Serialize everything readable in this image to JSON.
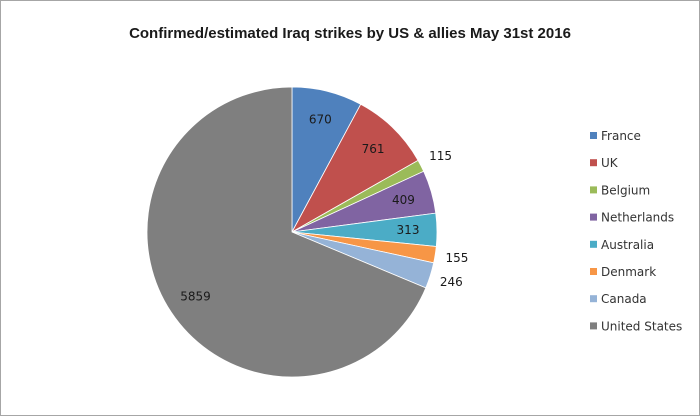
{
  "chart_data": {
    "type": "pie",
    "title": "Confirmed/estimated Iraq strikes by US & allies May 31st 2016",
    "categories": [
      "France",
      "UK",
      "Belgium",
      "Netherlands",
      "Australia",
      "Denmark",
      "Canada",
      "United States"
    ],
    "values": [
      670,
      761,
      115,
      409,
      313,
      155,
      246,
      5859
    ],
    "colors": [
      "#4f81bd",
      "#c0504d",
      "#9bbb59",
      "#8064a2",
      "#4bacc6",
      "#f79646",
      "#95b3d7",
      "#7f7f7f"
    ],
    "legend_position": "right",
    "start_angle": "12 o'clock, clockwise"
  }
}
